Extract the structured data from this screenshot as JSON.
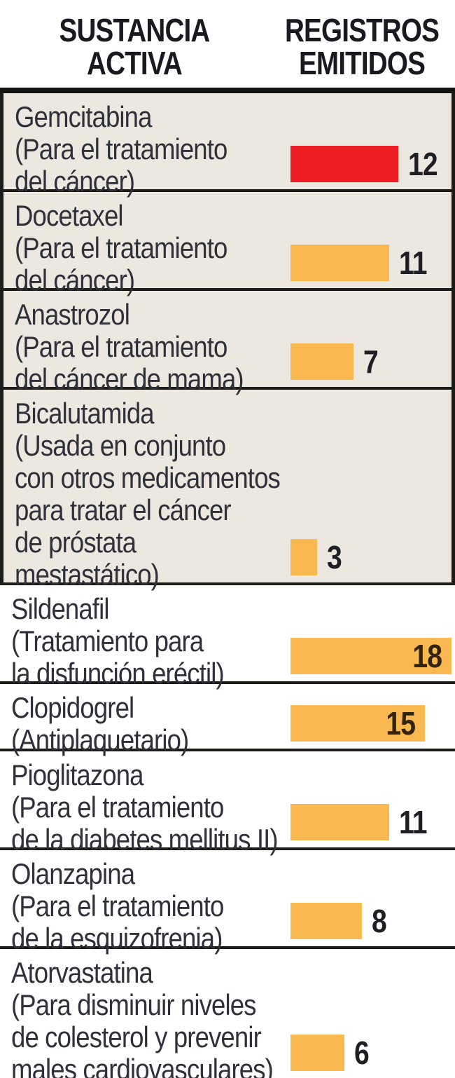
{
  "header": {
    "col1": "SUSTANCIA\nACTIVA",
    "col2": "REGISTROS\nEMITIDOS"
  },
  "colors": {
    "bar_default": "#FAB850",
    "bar_highlight": "#EE1C23",
    "shaded_row_bg": "#ECE8E0",
    "header_text": "#191920",
    "body_text": "#30303A",
    "divider": "#1B1B17",
    "value_text": "#1E1E24",
    "value_text_inside": "#33240F"
  },
  "chart_data": {
    "type": "bar",
    "orientation": "horizontal",
    "title": "",
    "xlabel": "SUSTANCIA ACTIVA",
    "ylabel": "REGISTROS EMITIDOS",
    "xlim": [
      0,
      18
    ],
    "grid": false,
    "legend": false,
    "categories": [
      "Gemcitabina",
      "Docetaxel",
      "Anastrozol",
      "Bicalutamida",
      "Sildenafil",
      "Clopidogrel",
      "Pioglitazona",
      "Olanzapina",
      "Atorvastatina"
    ],
    "values": [
      12,
      11,
      7,
      3,
      18,
      15,
      11,
      8,
      6
    ],
    "rows": [
      {
        "name": "Gemcitabina",
        "desc": "(Para el tratamiento\ndel cáncer)",
        "value": 12,
        "highlight": true,
        "shaded": true,
        "label_inside": false,
        "lines": 3
      },
      {
        "name": "Docetaxel",
        "desc": "(Para el tratamiento\ndel cáncer)",
        "value": 11,
        "highlight": false,
        "shaded": true,
        "label_inside": false,
        "lines": 3
      },
      {
        "name": "Anastrozol",
        "desc": "(Para el tratamiento\ndel cáncer de mama)",
        "value": 7,
        "highlight": false,
        "shaded": true,
        "label_inside": false,
        "lines": 3
      },
      {
        "name": "Bicalutamida",
        "desc": "(Usada en conjunto\ncon otros medicamentos\npara tratar el cáncer\nde próstata\nmestastático)",
        "value": 3,
        "highlight": false,
        "shaded": true,
        "label_inside": false,
        "lines": 6
      },
      {
        "name": "Sildenafil",
        "desc": "(Tratamiento para\nla disfunción eréctil)",
        "value": 18,
        "highlight": false,
        "shaded": false,
        "label_inside": true,
        "lines": 3
      },
      {
        "name": "Clopidogrel",
        "desc": "(Antiplaquetario)",
        "value": 15,
        "highlight": false,
        "shaded": false,
        "label_inside": true,
        "lines": 2
      },
      {
        "name": "Pioglitazona",
        "desc": "(Para el tratamiento\nde la diabetes mellitus II)",
        "value": 11,
        "highlight": false,
        "shaded": false,
        "label_inside": false,
        "lines": 3
      },
      {
        "name": "Olanzapina",
        "desc": "(Para el tratamiento\nde la esquizofrenia)",
        "value": 8,
        "highlight": false,
        "shaded": false,
        "label_inside": false,
        "lines": 3
      },
      {
        "name": "Atorvastatina",
        "desc": "(Para disminuir niveles\nde colesterol y prevenir\nmales cardiovasculares)",
        "value": 6,
        "highlight": false,
        "shaded": false,
        "label_inside": false,
        "lines": 4
      }
    ]
  }
}
